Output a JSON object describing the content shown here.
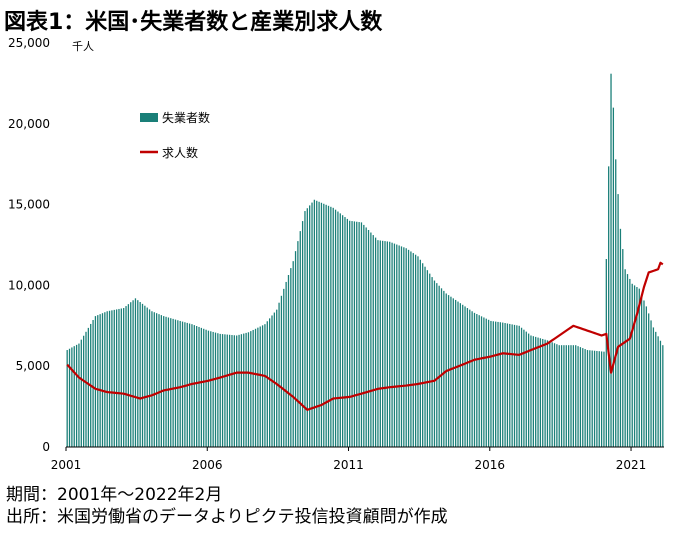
{
  "title": "図表1：米国･失業者数と産業別求人数",
  "notes": {
    "period": "期間：2001年～2022年2月",
    "source": "出所：米国労働省のデータよりピクテ投信投資顧問が作成"
  },
  "chart_data": {
    "type": "bar",
    "unit_label": "千人",
    "ylim": [
      0,
      25000
    ],
    "y_ticks": [
      "25,000",
      "20,000",
      "15,000",
      "10,000",
      "5,000",
      "0"
    ],
    "y_tick_values": [
      25000,
      20000,
      15000,
      10000,
      5000,
      0
    ],
    "x_ticks": [
      "2001",
      "2006",
      "2011",
      "2016",
      "2021"
    ],
    "x_tick_years": [
      2001,
      2006,
      2011,
      2016,
      2021
    ],
    "x_range": [
      "2001-01",
      "2022-02"
    ],
    "legend": {
      "placement": "upper-left"
    },
    "colors": {
      "unemployed": "#1a7f78",
      "openings": "#c00000"
    },
    "series": [
      {
        "name": "失業者数",
        "type": "bar",
        "points": [
          [
            "2001-01",
            6000
          ],
          [
            "2001-06",
            6400
          ],
          [
            "2002-01",
            8100
          ],
          [
            "2002-06",
            8400
          ],
          [
            "2003-01",
            8600
          ],
          [
            "2003-06",
            9200
          ],
          [
            "2004-01",
            8400
          ],
          [
            "2004-06",
            8100
          ],
          [
            "2005-01",
            7800
          ],
          [
            "2005-06",
            7600
          ],
          [
            "2006-01",
            7200
          ],
          [
            "2006-06",
            7000
          ],
          [
            "2007-01",
            6900
          ],
          [
            "2007-06",
            7100
          ],
          [
            "2008-01",
            7600
          ],
          [
            "2008-06",
            8500
          ],
          [
            "2009-01",
            11500
          ],
          [
            "2009-06",
            14600
          ],
          [
            "2009-10",
            15300
          ],
          [
            "2010-06",
            14800
          ],
          [
            "2011-01",
            14000
          ],
          [
            "2011-06",
            13900
          ],
          [
            "2012-01",
            12800
          ],
          [
            "2012-06",
            12700
          ],
          [
            "2013-01",
            12300
          ],
          [
            "2013-06",
            11800
          ],
          [
            "2014-01",
            10300
          ],
          [
            "2014-06",
            9500
          ],
          [
            "2015-01",
            8800
          ],
          [
            "2015-06",
            8300
          ],
          [
            "2016-01",
            7800
          ],
          [
            "2016-06",
            7700
          ],
          [
            "2017-01",
            7500
          ],
          [
            "2017-06",
            6900
          ],
          [
            "2018-01",
            6600
          ],
          [
            "2018-06",
            6300
          ],
          [
            "2019-01",
            6300
          ],
          [
            "2019-06",
            6000
          ],
          [
            "2020-01",
            5900
          ],
          [
            "2020-04",
            23100
          ],
          [
            "2020-05",
            21000
          ],
          [
            "2020-06",
            17800
          ],
          [
            "2020-08",
            13500
          ],
          [
            "2020-10",
            11000
          ],
          [
            "2021-01",
            10100
          ],
          [
            "2021-04",
            9800
          ],
          [
            "2021-07",
            8700
          ],
          [
            "2021-10",
            7400
          ],
          [
            "2022-02",
            6300
          ]
        ]
      },
      {
        "name": "求人数",
        "type": "line",
        "points": [
          [
            "2001-01",
            5100
          ],
          [
            "2001-06",
            4300
          ],
          [
            "2002-01",
            3600
          ],
          [
            "2002-06",
            3400
          ],
          [
            "2003-01",
            3300
          ],
          [
            "2003-08",
            3000
          ],
          [
            "2004-01",
            3200
          ],
          [
            "2004-06",
            3500
          ],
          [
            "2005-01",
            3700
          ],
          [
            "2005-06",
            3900
          ],
          [
            "2006-01",
            4100
          ],
          [
            "2006-06",
            4300
          ],
          [
            "2007-01",
            4600
          ],
          [
            "2007-06",
            4600
          ],
          [
            "2008-01",
            4400
          ],
          [
            "2008-06",
            3900
          ],
          [
            "2009-01",
            3100
          ],
          [
            "2009-07",
            2300
          ],
          [
            "2010-01",
            2600
          ],
          [
            "2010-06",
            3000
          ],
          [
            "2011-01",
            3100
          ],
          [
            "2011-06",
            3300
          ],
          [
            "2012-01",
            3600
          ],
          [
            "2012-06",
            3700
          ],
          [
            "2013-01",
            3800
          ],
          [
            "2013-06",
            3900
          ],
          [
            "2014-01",
            4100
          ],
          [
            "2014-06",
            4700
          ],
          [
            "2015-01",
            5100
          ],
          [
            "2015-06",
            5400
          ],
          [
            "2016-01",
            5600
          ],
          [
            "2016-06",
            5800
          ],
          [
            "2017-01",
            5700
          ],
          [
            "2017-06",
            6000
          ],
          [
            "2018-01",
            6400
          ],
          [
            "2018-06",
            6900
          ],
          [
            "2018-12",
            7500
          ],
          [
            "2019-06",
            7200
          ],
          [
            "2019-12",
            6900
          ],
          [
            "2020-02",
            7000
          ],
          [
            "2020-04",
            4600
          ],
          [
            "2020-07",
            6200
          ],
          [
            "2020-12",
            6700
          ],
          [
            "2021-03",
            8200
          ],
          [
            "2021-06",
            9900
          ],
          [
            "2021-08",
            10800
          ],
          [
            "2021-12",
            11000
          ],
          [
            "2022-01",
            11400
          ],
          [
            "2022-02",
            11300
          ]
        ]
      }
    ]
  }
}
